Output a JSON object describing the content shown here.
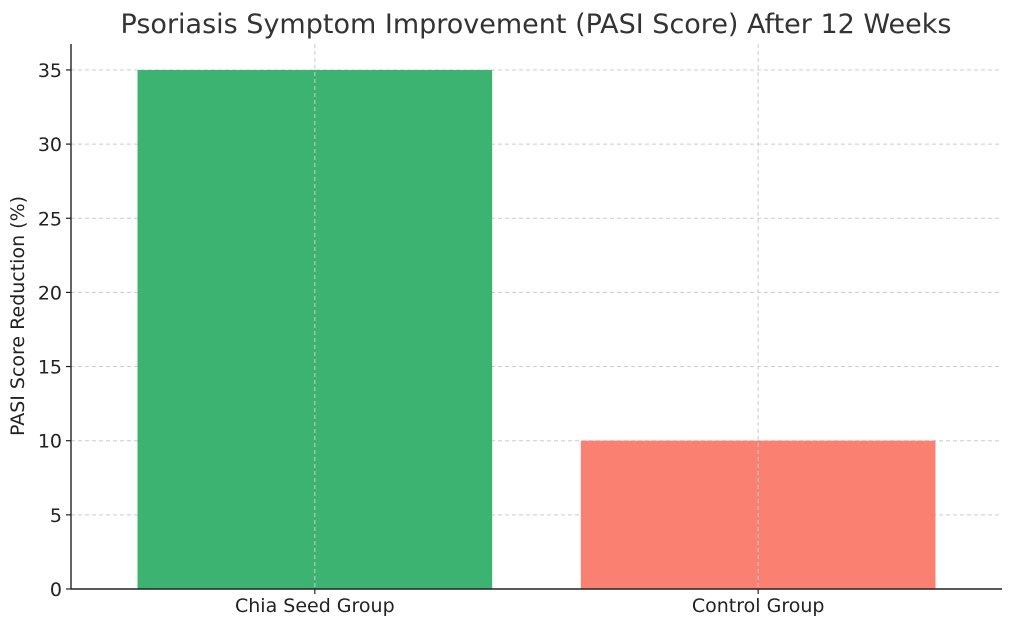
{
  "chart_data": {
    "type": "bar",
    "title": "Psoriasis Symptom Improvement (PASI Score) After 12 Weeks",
    "xlabel": "",
    "ylabel": "PASI Score Reduction (%)",
    "categories": [
      "Chia Seed Group",
      "Control Group"
    ],
    "values": [
      35,
      10
    ],
    "colors": [
      "#3cb371",
      "#fa8072"
    ],
    "ylim": [
      0,
      36.75
    ],
    "yticks": [
      0,
      5,
      10,
      15,
      20,
      25,
      30,
      35
    ],
    "ytick_labels": [
      "0",
      "5",
      "10",
      "15",
      "20",
      "25",
      "30",
      "35"
    ],
    "grid": true,
    "legend": "none"
  }
}
